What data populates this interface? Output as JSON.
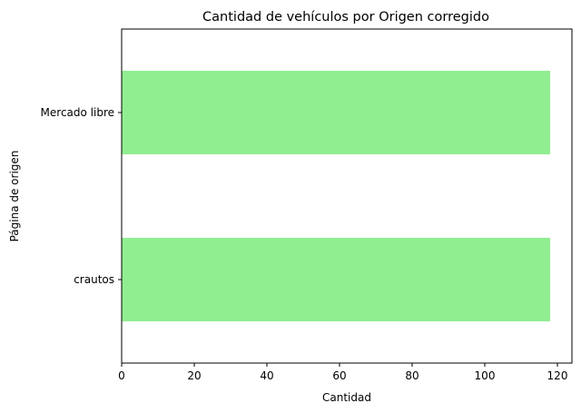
{
  "chart_data": {
    "type": "bar",
    "orientation": "horizontal",
    "title": "Cantidad de vehículos por Origen corregido",
    "xlabel": "Cantidad",
    "ylabel": "Página de origen",
    "categories": [
      "crautos",
      "Mercado libre"
    ],
    "values": [
      118,
      118
    ],
    "xlim": [
      0,
      124
    ],
    "xticks": [
      0,
      20,
      40,
      60,
      80,
      100,
      120
    ],
    "bar_color": "#90ee90",
    "grid": false,
    "legend": "none"
  }
}
